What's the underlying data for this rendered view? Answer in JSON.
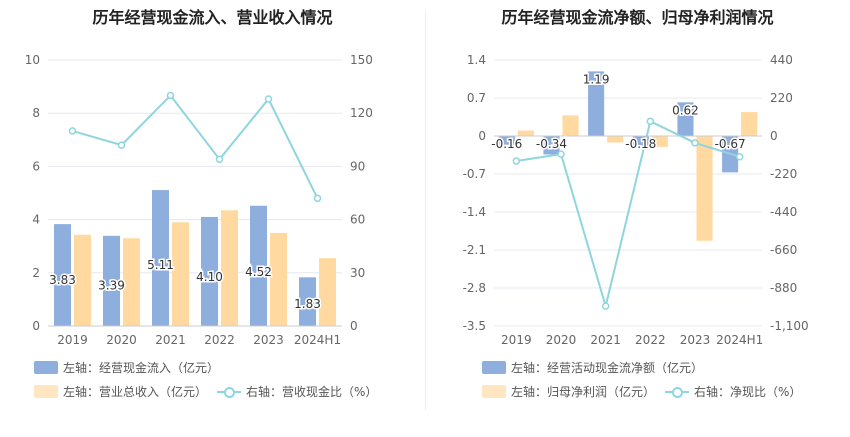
{
  "colors": {
    "bar_blue": "#8eaedd",
    "bar_orange": "#ffd9a0",
    "line_cyan": "#8fd5dd",
    "grid": "#e6e8ef",
    "axis_text": "#666666"
  },
  "chart_data": [
    {
      "type": "bar+line",
      "title": "历年经营现金流入、营业收入情况",
      "categories": [
        "2019",
        "2020",
        "2021",
        "2022",
        "2023",
        "2024H1"
      ],
      "left_axis": {
        "ylim": [
          0,
          10
        ],
        "ticks": [
          "0",
          "2",
          "4",
          "6",
          "8",
          "10"
        ]
      },
      "right_axis": {
        "ylim": [
          0,
          150
        ],
        "ticks": [
          "0",
          "30",
          "60",
          "90",
          "120",
          "150"
        ]
      },
      "series": [
        {
          "name": "左轴：经营现金流入（亿元）",
          "kind": "bar",
          "axis": "left",
          "color": "#8eaedd",
          "values": [
            3.83,
            3.39,
            5.11,
            4.1,
            4.52,
            1.83
          ],
          "labels": [
            "3.83",
            "3.39",
            "5.11",
            "4.10",
            "4.52",
            "1.83"
          ]
        },
        {
          "name": "左轴：营业总收入（亿元）",
          "kind": "bar",
          "axis": "left",
          "color": "#ffd9a0",
          "values": [
            3.43,
            3.3,
            3.9,
            4.35,
            3.5,
            2.55
          ]
        },
        {
          "name": "右轴：营收现金比（%）",
          "kind": "line",
          "axis": "right",
          "color": "#8fd5dd",
          "values": [
            110,
            102,
            130,
            94,
            128,
            72
          ]
        }
      ],
      "grid": true,
      "legend": "bottom"
    },
    {
      "type": "bar+line",
      "title": "历年经营现金流净额、归母净利润情况",
      "categories": [
        "2019",
        "2020",
        "2021",
        "2022",
        "2023",
        "2024H1"
      ],
      "left_axis": {
        "ylim": [
          -3.5,
          1.4
        ],
        "ticks": [
          "-3.5",
          "-2.8",
          "-2.1",
          "-1.4",
          "-0.7",
          "0",
          "0.7",
          "1.4"
        ]
      },
      "right_axis": {
        "ylim": [
          -1100,
          440
        ],
        "ticks": [
          "-1,100",
          "-880",
          "-660",
          "-440",
          "-220",
          "0",
          "220",
          "440"
        ]
      },
      "series": [
        {
          "name": "左轴：经营活动现金流净额（亿元）",
          "kind": "bar",
          "axis": "left",
          "color": "#8eaedd",
          "values": [
            -0.16,
            -0.34,
            1.19,
            -0.18,
            0.62,
            -0.67
          ],
          "labels": [
            "-0.16",
            "-0.34",
            "1.19",
            "-0.18",
            "0.62",
            "-0.67"
          ]
        },
        {
          "name": "左轴：归母净利润（亿元）",
          "kind": "bar",
          "axis": "left",
          "color": "#ffd9a0",
          "values": [
            0.1,
            0.38,
            -0.12,
            -0.2,
            -1.93,
            0.44
          ]
        },
        {
          "name": "右轴：净现比（%）",
          "kind": "line",
          "axis": "right",
          "color": "#8fd5dd",
          "values": [
            -145,
            -105,
            -985,
            85,
            -40,
            -120
          ]
        }
      ],
      "grid": true,
      "legend": "bottom"
    }
  ]
}
